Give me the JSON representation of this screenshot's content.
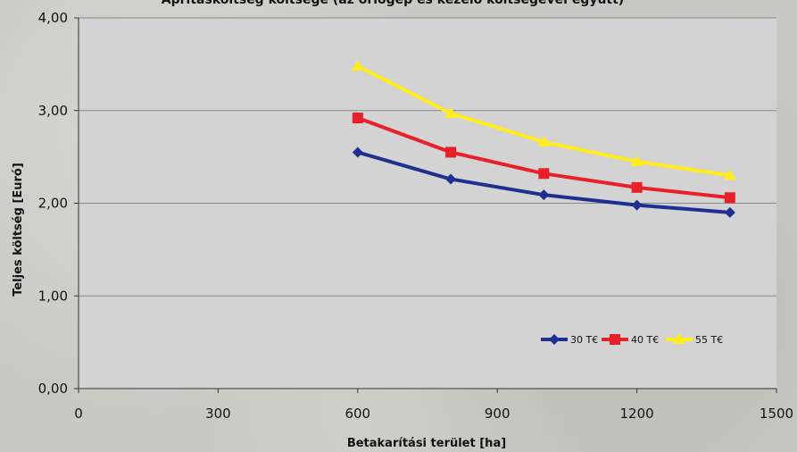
{
  "chart_data": {
    "type": "line",
    "title": "Aprításköltség költsége (az őrlőgép és kezelő költségével együtt)",
    "xlabel": "Betakarítási terület [ha]",
    "ylabel": "Teljes költség [Euró]",
    "xlim": [
      0,
      1500
    ],
    "ylim": [
      0,
      4
    ],
    "x_ticks": [
      "0",
      "300",
      "600",
      "900",
      "1200",
      "1500"
    ],
    "y_ticks": [
      "0,00",
      "1,00",
      "2,00",
      "3,00",
      "4,00"
    ],
    "grid": true,
    "legend_position": "bottom-right",
    "x": [
      600,
      800,
      1000,
      1200,
      1400
    ],
    "series": [
      {
        "name": "30 T€",
        "color": "#1f2f8f",
        "marker": "diamond",
        "values": [
          2.55,
          2.26,
          2.09,
          1.98,
          1.9
        ]
      },
      {
        "name": "40 T€",
        "color": "#e8202a",
        "marker": "square",
        "values": [
          2.92,
          2.55,
          2.32,
          2.17,
          2.06
        ]
      },
      {
        "name": "55 T€",
        "color": "#ffec1a",
        "marker": "triangle",
        "values": [
          3.48,
          2.97,
          2.66,
          2.45,
          2.3
        ]
      }
    ],
    "plot_background": "#d3d3d3"
  }
}
